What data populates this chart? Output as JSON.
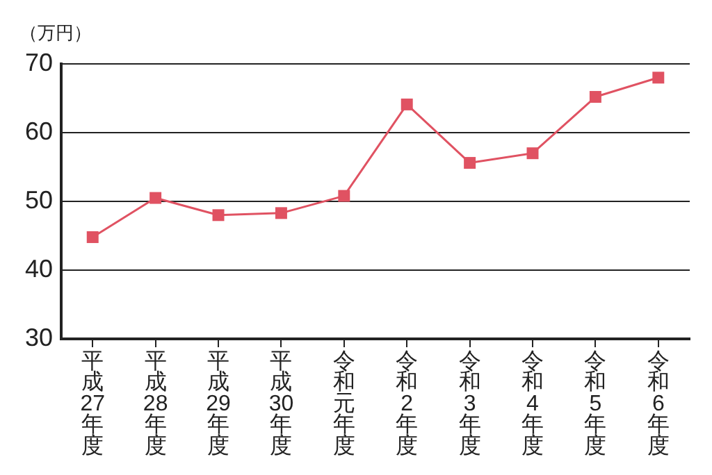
{
  "chart_data": {
    "type": "line",
    "ylabel": "（万円）",
    "categories": [
      "平成27年度",
      "平成28年度",
      "平成29年度",
      "平成30年度",
      "令和元年度",
      "令和2年度",
      "令和3年度",
      "令和4年度",
      "令和5年度",
      "令和6年度"
    ],
    "values": [
      44.8,
      50.5,
      48.0,
      48.3,
      50.8,
      64.1,
      55.6,
      57.0,
      65.2,
      68.0
    ],
    "color": "#e05262",
    "marker": "square",
    "line_style": "solid",
    "ylim": [
      30,
      70
    ],
    "yticks": [
      30,
      40,
      50,
      60,
      70
    ],
    "grid": "y",
    "legend": false
  }
}
